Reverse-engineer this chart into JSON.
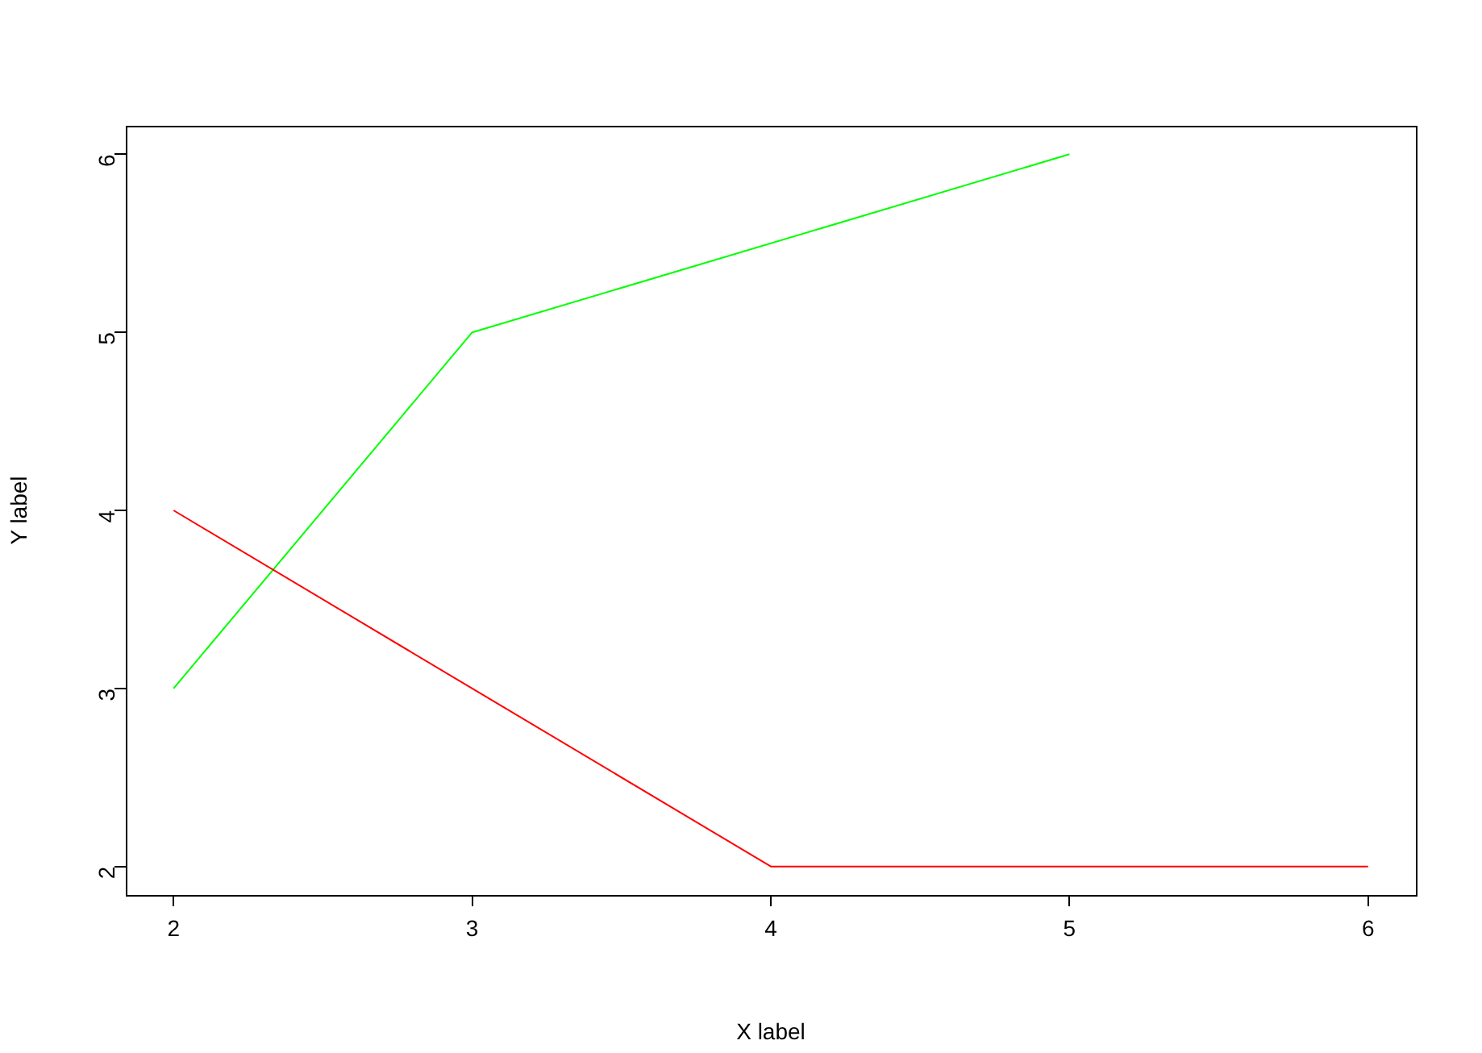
{
  "chart_data": {
    "type": "line",
    "xlabel": "X label",
    "ylabel": "Y label",
    "xlim": [
      1.84,
      6.16
    ],
    "xticks": [
      2,
      3,
      4,
      5,
      6
    ],
    "ylim": [
      1.84,
      6.16
    ],
    "yticks": [
      2,
      3,
      4,
      5,
      6
    ],
    "grid": false,
    "legend": false,
    "marker": "none",
    "line_style": "solid",
    "series": [
      {
        "color": "#ff0000",
        "x": [
          2,
          3,
          4,
          5,
          6
        ],
        "values": [
          4,
          3,
          2,
          2,
          2
        ]
      },
      {
        "color": "#00ff00",
        "x": [
          2,
          3,
          5
        ],
        "values": [
          3,
          5,
          6
        ]
      }
    ]
  }
}
